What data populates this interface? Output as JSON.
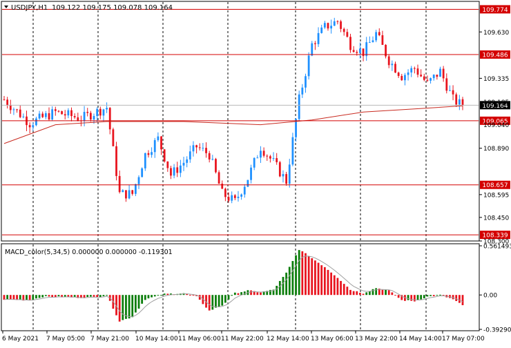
{
  "symbol_header": {
    "symbol": "USDJPY,H1",
    "ohlc": "109.122 109.175 109.078 109.164"
  },
  "price_axis": {
    "ticks": [
      "109.630",
      "109.335",
      "108.890",
      "108.595",
      "108.450",
      "108.300"
    ],
    "partial_ticks": [
      "109.185",
      "109.040"
    ]
  },
  "hlines": [
    {
      "label": "109.774",
      "value": 109.774
    },
    {
      "label": "109.486",
      "value": 109.486
    },
    {
      "label": "109.065",
      "value": 109.065
    },
    {
      "label": "108.657",
      "value": 108.657
    },
    {
      "label": "108.339",
      "value": 108.339
    }
  ],
  "current_price": {
    "label": "109.164",
    "value": 109.164
  },
  "macd": {
    "title": "MACD_color(5,34,5) 0.000000 0.000000 -0.119301",
    "axis": [
      "0.561493",
      "0.00",
      "-0.392902"
    ]
  },
  "time_axis": [
    "6 May 2021",
    "7 May 05:00",
    "7 May 21:00",
    "10 May 14:00",
    "11 May 06:00",
    "11 May 22:00",
    "12 May 14:00",
    "13 May 06:00",
    "13 May 22:00",
    "14 May 14:00",
    "17 May 07:00"
  ],
  "colors": {
    "bull": "#1e90ff",
    "bear": "#e8141e",
    "ma": "#c8281e",
    "line": "#d40000",
    "macd_pos": "#0a7d0a",
    "macd_neg": "#e8141e",
    "signal": "#a0a0a0"
  },
  "chart_data": [
    {
      "type": "candlestick",
      "symbol": "USDJPY",
      "timeframe": "H1",
      "ylim": [
        108.3,
        109.82
      ],
      "horizontal_levels": [
        109.774,
        109.486,
        109.065,
        108.657,
        108.339
      ],
      "last_price": 109.164,
      "close_path": [
        [
          0,
          109.2
        ],
        [
          8,
          109.05
        ],
        [
          16,
          109.12
        ],
        [
          24,
          109.08
        ],
        [
          32,
          109.15
        ],
        [
          36,
          108.6
        ],
        [
          40,
          108.6
        ],
        [
          44,
          108.85
        ],
        [
          48,
          108.95
        ],
        [
          52,
          108.72
        ],
        [
          56,
          108.8
        ],
        [
          60,
          108.9
        ],
        [
          64,
          108.85
        ],
        [
          68,
          108.6
        ],
        [
          72,
          108.55
        ],
        [
          76,
          108.7
        ],
        [
          80,
          108.9
        ],
        [
          84,
          108.8
        ],
        [
          88,
          108.68
        ],
        [
          92,
          109.2
        ],
        [
          96,
          109.55
        ],
        [
          100,
          109.66
        ],
        [
          104,
          109.7
        ],
        [
          108,
          109.55
        ],
        [
          112,
          109.5
        ],
        [
          116,
          109.62
        ],
        [
          120,
          109.45
        ],
        [
          124,
          109.35
        ],
        [
          128,
          109.4
        ],
        [
          132,
          109.3
        ],
        [
          136,
          109.38
        ],
        [
          140,
          109.2
        ],
        [
          143,
          109.16
        ]
      ],
      "moving_average": {
        "points": [
          [
            0,
            108.92
          ],
          [
            16,
            109.04
          ],
          [
            32,
            109.06
          ],
          [
            56,
            109.06
          ],
          [
            80,
            109.04
          ],
          [
            96,
            109.07
          ],
          [
            112,
            109.12
          ],
          [
            128,
            109.14
          ],
          [
            143,
            109.16
          ]
        ]
      }
    },
    {
      "type": "histogram",
      "name": "MACD_color(5,34,5)",
      "ylim": [
        -0.392902,
        0.561493
      ],
      "x": [
        0,
        8,
        12,
        16,
        24,
        30,
        32,
        36,
        40,
        44,
        50,
        56,
        60,
        64,
        68,
        72,
        76,
        80,
        84,
        88,
        92,
        96,
        100,
        104,
        108,
        112,
        116,
        120,
        124,
        128,
        132,
        136,
        140,
        143
      ],
      "values": [
        -0.05,
        -0.06,
        -0.02,
        -0.02,
        -0.03,
        -0.02,
        0.0,
        -0.3,
        -0.25,
        -0.05,
        0.01,
        0.02,
        -0.02,
        -0.18,
        -0.12,
        0.02,
        0.05,
        0.03,
        0.06,
        0.25,
        0.52,
        0.42,
        0.32,
        0.2,
        0.06,
        0.02,
        0.08,
        0.05,
        -0.06,
        -0.07,
        -0.02,
        0.0,
        -0.05,
        -0.12
      ]
    }
  ]
}
